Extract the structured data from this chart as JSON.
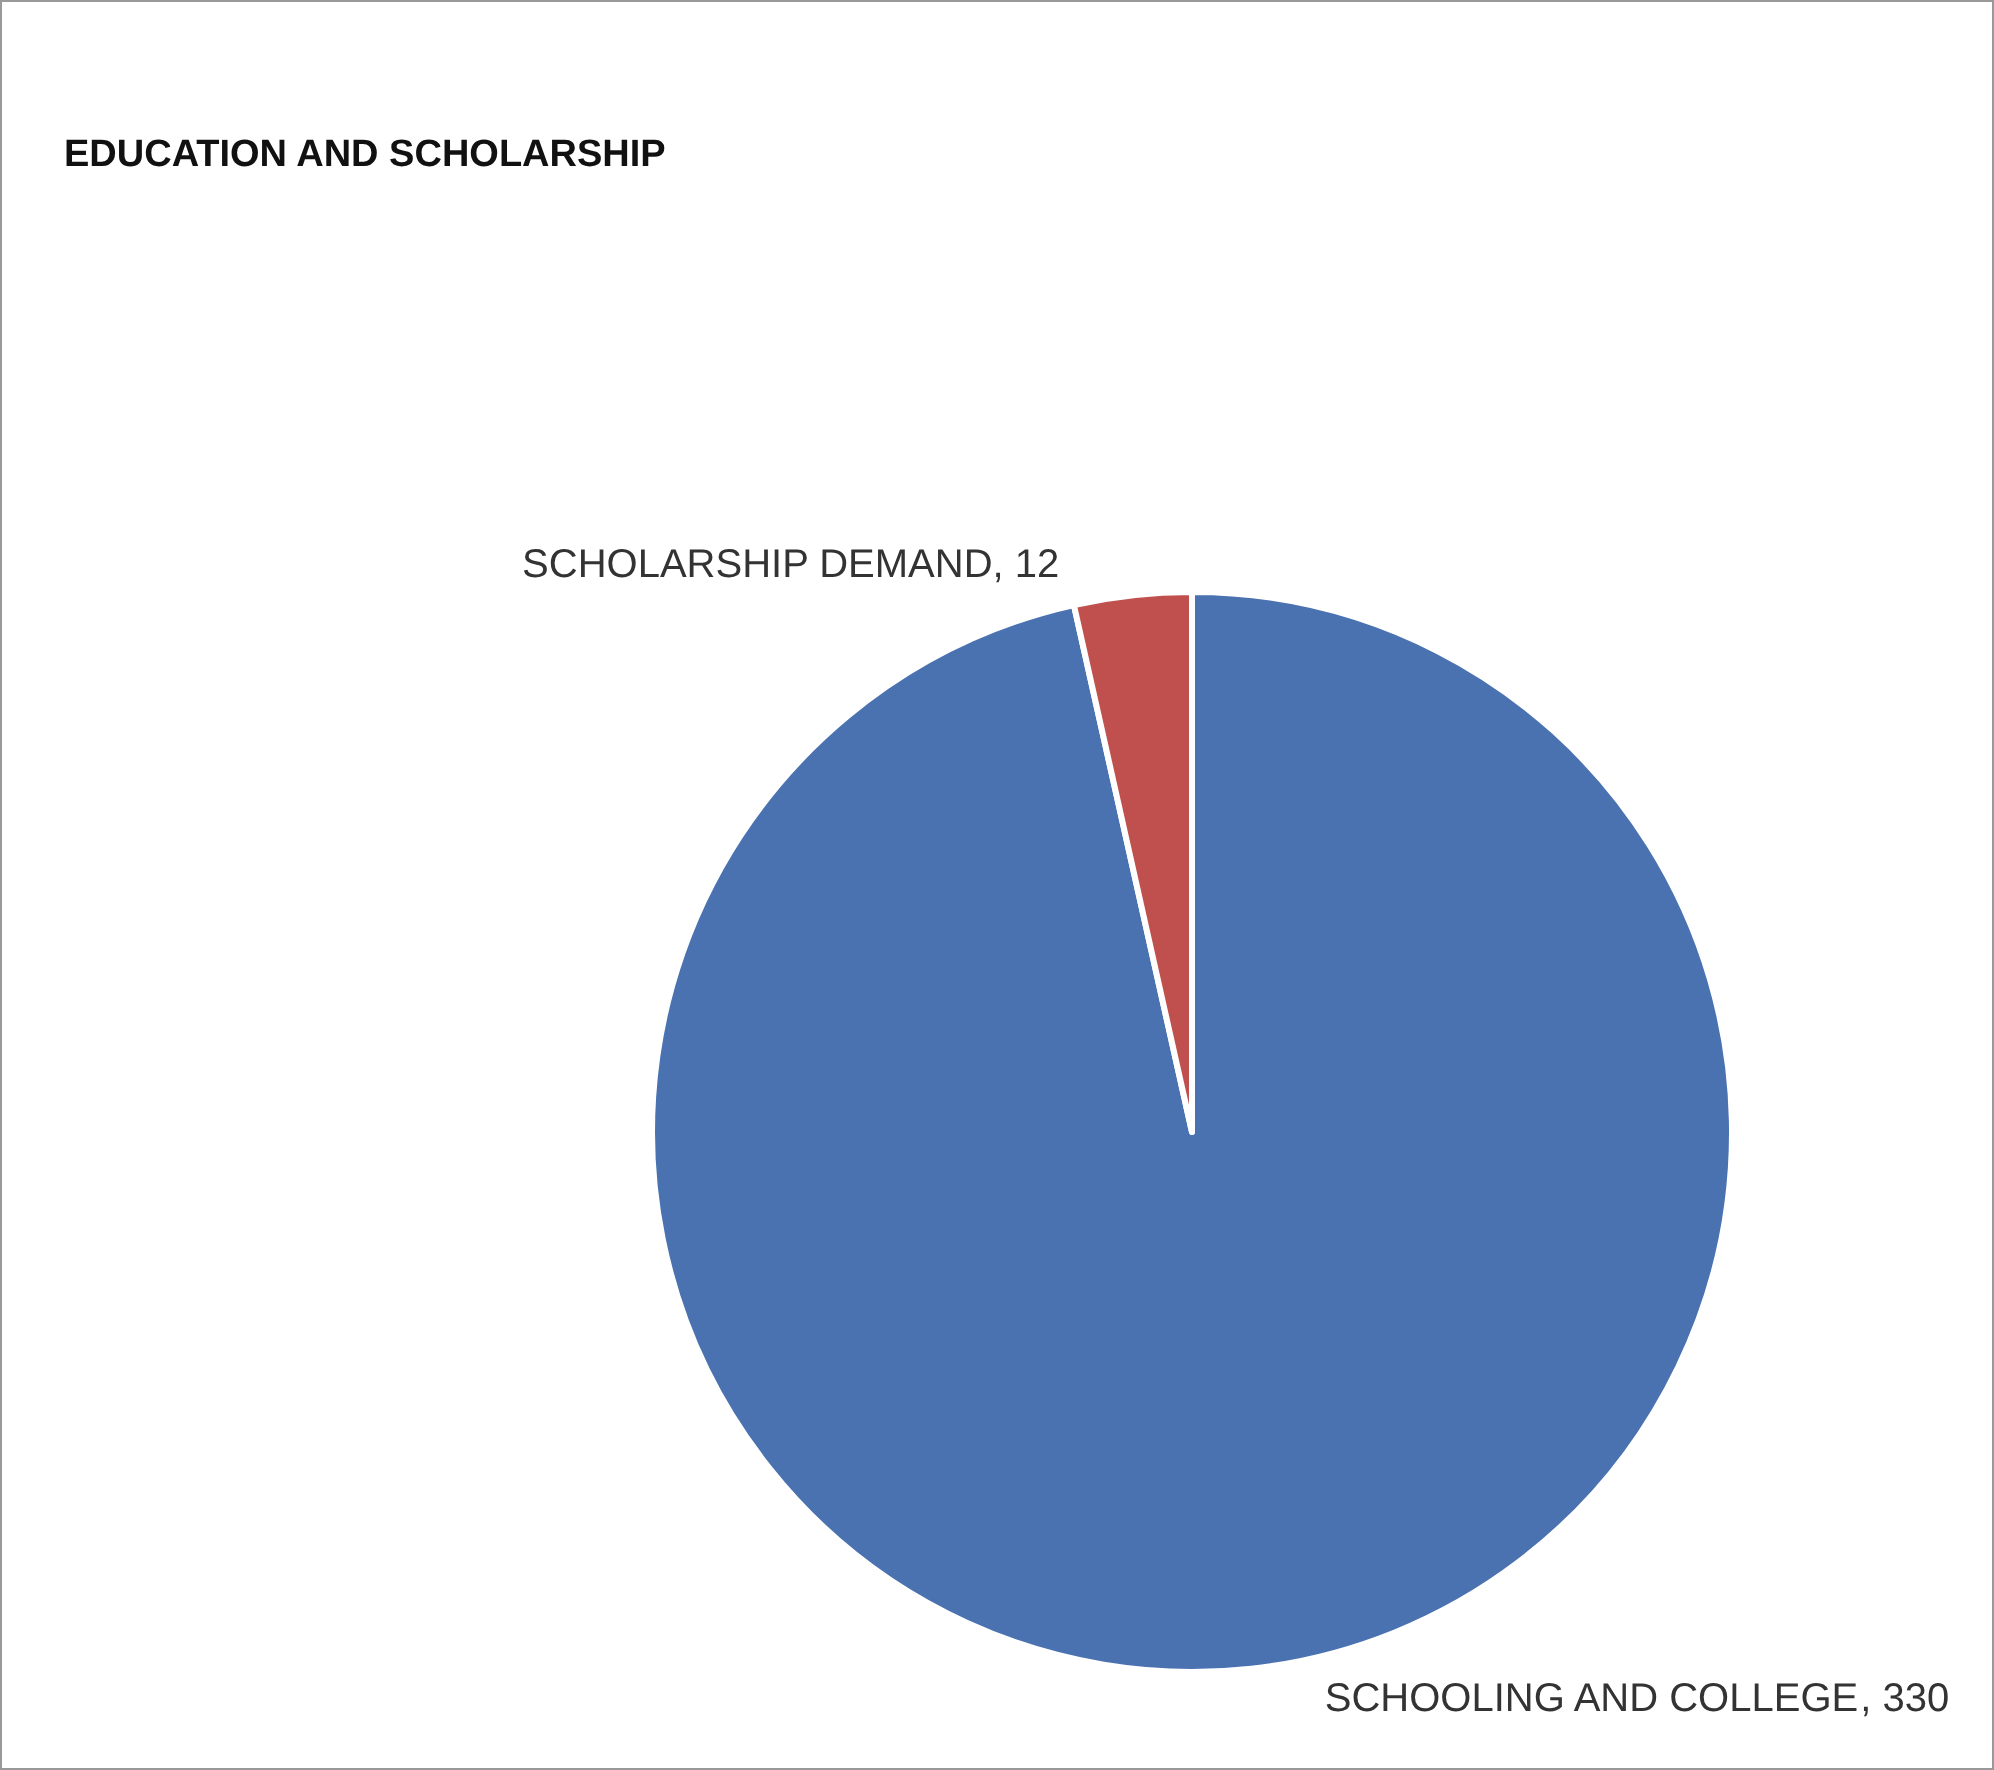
{
  "chart_data": {
    "type": "pie",
    "title": "EDUCATION AND SCHOLARSHIP",
    "categories": [
      "SCHOOLING AND COLLEGE",
      "SCHOLARSHIP DEMAND"
    ],
    "values": [
      330,
      12
    ],
    "colors": [
      "#4a72b0",
      "#c0504d"
    ],
    "value_labels": [
      ", 330",
      ", 12"
    ]
  }
}
